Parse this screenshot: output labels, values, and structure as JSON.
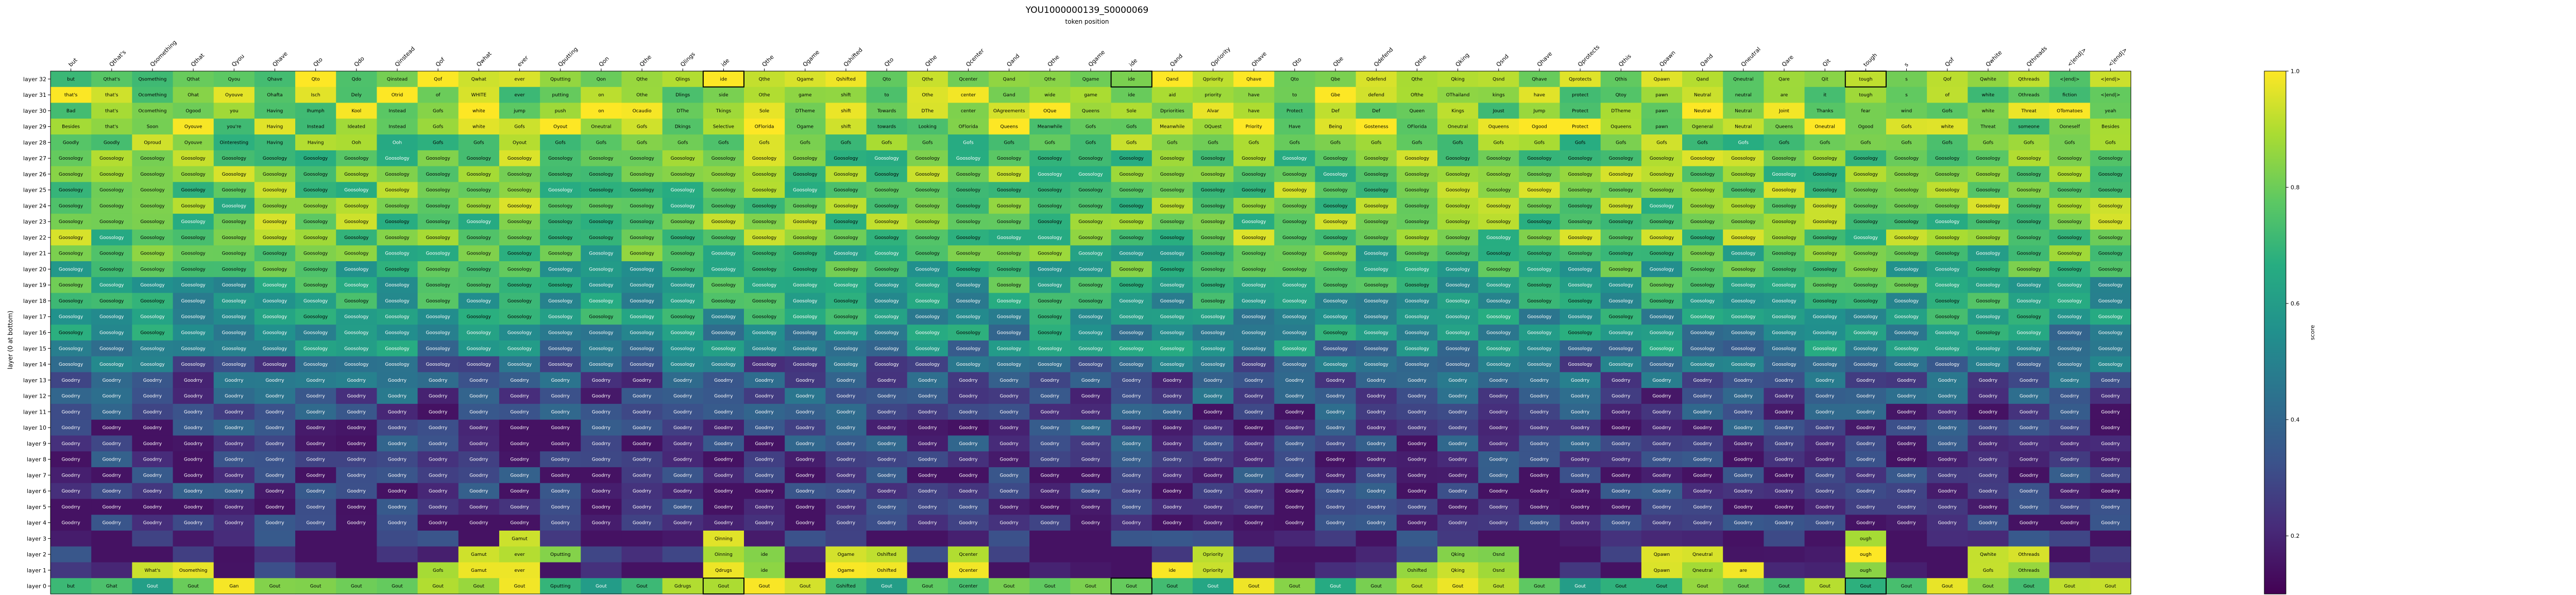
{
  "chart_data": {
    "type": "heatmap",
    "title": "YOU1000000139_S0000069",
    "xlabel": "token position",
    "ylabel": "layer (0 at bottom)",
    "colorbar": {
      "label": "score",
      "ticks": [
        "0.2",
        "0.4",
        "0.6",
        "0.8",
        "1.0"
      ],
      "range": [
        0.1,
        1.0
      ],
      "colormap": "viridis"
    },
    "tokens": [
      "but",
      "Qthat's",
      "Qsomething",
      "Qthat",
      "Qyou",
      "Qhave",
      "Qto",
      "Qdo",
      "Qinstead",
      "Qof",
      "Qwhat",
      "ever",
      "Qputting",
      "Qon",
      "Qthe",
      "Qlings",
      "ide",
      "Qthe",
      "Qgame",
      "Qshifted",
      "Qto",
      "Qthe",
      "Qcenter",
      "Qand",
      "Qthe",
      "Qgame",
      "ide",
      "Qand",
      "Qpriority",
      "Qhave",
      "Qto",
      "Qbe",
      "Qdefend",
      "Qthe",
      "Qking",
      "Qsnd",
      "Qhave",
      "Qprotects",
      "Qthis",
      "Qpawn",
      "Qand",
      "Qneutral",
      "Qare",
      "Qit",
      "tough",
      "s",
      "Qof",
      "Qwhite",
      "Qthreads",
      "<|end|>",
      "<|end|>"
    ],
    "layers": [
      "layer 32",
      "layer 31",
      "layer 30",
      "layer 29",
      "layer 28",
      "layer 27",
      "layer 26",
      "layer 25",
      "layer 24",
      "layer 23",
      "layer 22",
      "layer 21",
      "layer 20",
      "layer 19",
      "layer 18",
      "layer 17",
      "layer 16",
      "layer 15",
      "layer 14",
      "layer 13",
      "layer 12",
      "layer 11",
      "layer 10",
      "layer 9",
      "layer 8",
      "layer 7",
      "layer 6",
      "layer 5",
      "layer 4",
      "layer 3",
      "layer 2",
      "layer 1",
      "layer 0"
    ],
    "top_rows": [
      [
        "but",
        "Qthat's",
        "Qsomething",
        "Qthat",
        "Qyou",
        "Qhave",
        "Qto",
        "Qdo",
        "Qinstead",
        "Qof",
        "Qwhat",
        "ever",
        "Qputting",
        "Qon",
        "Qthe",
        "Qlings",
        "ide",
        "Qthe",
        "Qgame",
        "Qshifted",
        "Qto",
        "Qthe",
        "Qcenter",
        "Qand",
        "Qthe",
        "Qgame",
        "ide",
        "Qand",
        "Qpriority",
        "Qhave",
        "Qto",
        "Qbe",
        "Qdefend",
        "Qthe",
        "Qking",
        "Qsnd",
        "Qhave",
        "Qprotects",
        "Qthis",
        "Qpawn",
        "Qand",
        "Qneutral",
        "Qare",
        "Qit",
        "tough",
        "s",
        "Qof",
        "Qwhite",
        "Qthreads",
        "<|end|>",
        "<|end|>"
      ],
      [
        "that's",
        "that's",
        "Ocomething",
        "Ohat",
        "Oyouve",
        "Ohafta",
        "Isch",
        "Dely",
        "Otrid",
        "of",
        "WHITE",
        "ever",
        "putting",
        "on",
        "Othe",
        "Dlings",
        "side",
        "Othe",
        "game",
        "shift",
        "to",
        "Othe",
        "center",
        "Gand",
        "wide",
        "game",
        "ide",
        "aid",
        "priority",
        "have",
        "to",
        "Gbe",
        "defend",
        "Ofthe",
        "OThailand",
        "kings",
        "have",
        "protect",
        "Qtoy",
        "pawn",
        "Neutral",
        "neutral",
        "are",
        "it",
        "tough",
        "s",
        "of",
        "white",
        "Othreads",
        "fiction",
        "<|end|>"
      ],
      [
        "Bad",
        "that's",
        "Ocomething",
        "Ogood",
        "you",
        "Having",
        "Ihumph",
        "Kool",
        "Instead",
        "Gofs",
        "white",
        "jump",
        "push",
        "on",
        "Ocaudio",
        "DThe",
        "Tkings",
        "Sole",
        "DTheme",
        "shift",
        "Towards",
        "DThe",
        "center",
        "OAgreements",
        "OQue",
        "Queens",
        "Sole",
        "Dpriorities",
        "Alvar",
        "have",
        "Protect",
        "Def",
        "Def",
        "Queen",
        "Kings",
        "Joust",
        "Jump",
        "Protect",
        "DTheme",
        "pawn",
        "Neutral",
        "Neutral",
        "Joint",
        "Thanks",
        "fear",
        "wind",
        "Gofs",
        "white",
        "Threat",
        "OTomatoes",
        "yeah"
      ],
      [
        "Besides",
        "that's",
        "Soon",
        "Oyouve",
        "you're",
        "Having",
        "Instead",
        "Ideated",
        "Instead",
        "Gofs",
        "white",
        "Gofs",
        "Oyout",
        "Oneutral",
        "Gofs",
        "Dkings",
        "Selective",
        "OFlorida",
        "Ogame",
        "shift",
        "towards",
        "Looking",
        "OFlorida",
        "Queens",
        "Meanwhile",
        "Gofs",
        "Gofs",
        "Meanwhile",
        "OQuest",
        "Priority",
        "Have",
        "Being",
        "Gosteness",
        "OFlorida",
        "Oneutral",
        "Oqueens",
        "Ogood",
        "Protect",
        "Oqueens",
        "pawn",
        "Ogeneral",
        "Neutral",
        "Queens",
        "Oneutral",
        "Ogood",
        "Gofs",
        "white",
        "Threat",
        "someone",
        "Ooneself",
        "Besides"
      ],
      [
        "Goodly",
        "Goodly",
        "Oproud",
        "Oyouve",
        "Ointeresting",
        "Having",
        "Having",
        "Ooh",
        "Ooh",
        "Gofs",
        "Gofs",
        "Oyout",
        "Gofs",
        "Gofs",
        "Gofs",
        "Gofs",
        "Gofs",
        "Gofs",
        "Gofs",
        "Gofs",
        "Gofs",
        "Gofs",
        "Gofs",
        "Gofs",
        "Gofs",
        "Gofs",
        "Gofs",
        "Gofs",
        "Gofs",
        "Gofs",
        "Gofs",
        "Gofs",
        "Gofs",
        "Gofs",
        "Gofs",
        "Gofs",
        "Gofs",
        "Gofs",
        "Gofs",
        "Gofs",
        "Gofs",
        "Gofs",
        "Gofs",
        "Gofs",
        "Gofs",
        "Gofs",
        "Gofs",
        "Gofs",
        "Gofs",
        "Gofs",
        "Gofs"
      ]
    ],
    "fill_word": "Goosology",
    "low_word": "Goodrry",
    "bottom_rows": [
      [
        "",
        "",
        "",
        "",
        "",
        "",
        "",
        "",
        "",
        "",
        "",
        "Gamut",
        "",
        "",
        "",
        "",
        "Qinning",
        "",
        "",
        "",
        "",
        "",
        "",
        "",
        "",
        "",
        "",
        "",
        "",
        "",
        "",
        "",
        "",
        "",
        "",
        "",
        "",
        "",
        "",
        "",
        "",
        "",
        "",
        "",
        "ough",
        "",
        "",
        "",
        "",
        "",
        ""
      ],
      [
        "",
        "",
        "",
        "",
        "",
        "",
        "",
        "",
        "",
        "",
        "Gamut",
        "ever",
        "Oputting",
        "",
        "",
        "",
        "Oinning",
        "ide",
        "",
        "Ogame",
        "Oshifted",
        "",
        "Qcenter",
        "",
        "",
        "",
        "",
        "",
        "Opriority",
        "",
        "",
        "",
        "",
        "",
        "Qking",
        "Osnd",
        "",
        "",
        "",
        "Qpawn",
        "Qneutral",
        "",
        "",
        "",
        "ough",
        "",
        "",
        "Qwhite",
        "Othreads",
        "",
        ""
      ],
      [
        "",
        "",
        "What's",
        "Osomething",
        "",
        "",
        "",
        "",
        "",
        "Gofs",
        "Gamut",
        "ever",
        "",
        "",
        "",
        "",
        "Qdrugs",
        "ide",
        "",
        "Ogame",
        "Oshifted",
        "",
        "Qcenter",
        "",
        "",
        "",
        "",
        "ide",
        "Opriority",
        "",
        "",
        "",
        "",
        "Oshifted",
        "Qking",
        "Osnd",
        "",
        "",
        "",
        "Qpawn",
        "Qneutral",
        "are",
        "",
        "",
        "ough",
        "",
        "",
        "Gofs",
        "Othreads",
        "",
        ""
      ]
    ],
    "base_row": [
      "but",
      "Ghat",
      "Gout",
      "Gout",
      "Gan",
      "Gout",
      "Gout",
      "Gout",
      "Gout",
      "Gout",
      "Gout",
      "Gout",
      "Gputting",
      "Gout",
      "Gout",
      "Gdrugs",
      "Gout",
      "Gout",
      "Gout",
      "Gshifted",
      "Gout",
      "Gout",
      "Gcenter",
      "Gout",
      "Gout",
      "Gout",
      "Gout",
      "Gout",
      "Gout",
      "Gout",
      "Gout",
      "Gout",
      "Gout",
      "Gout",
      "Gout",
      "Gout",
      "Gout",
      "Gout",
      "Gout",
      "Gout",
      "Gout",
      "Gout",
      "Gout",
      "Gout",
      "Gout",
      "Gout",
      "Gout",
      "Gout",
      "Gout",
      "Gout",
      "Gout"
    ],
    "boxed_top": [
      16,
      26,
      44
    ],
    "grid": false,
    "legend": "right"
  }
}
